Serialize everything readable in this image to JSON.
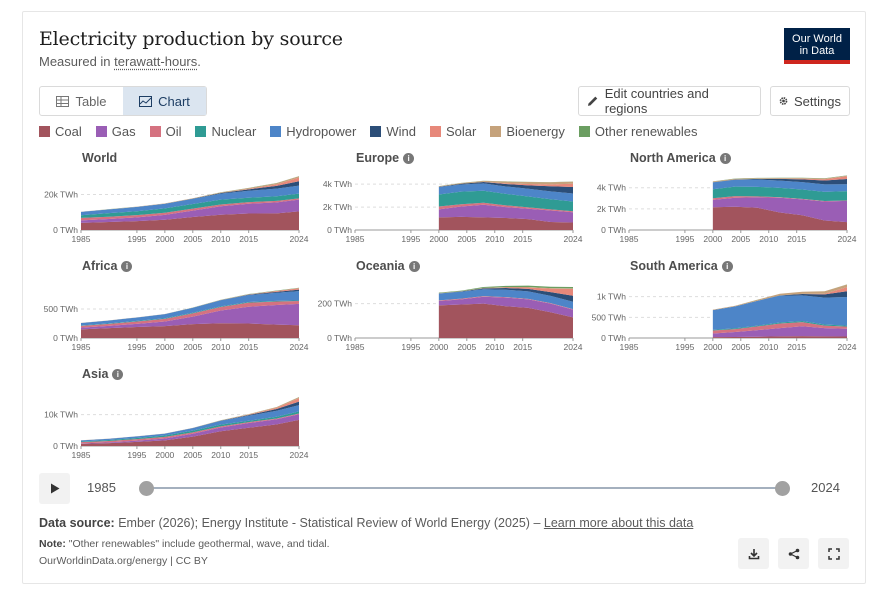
{
  "header": {
    "title": "Electricity production by source",
    "subtitle_prefix": "Measured in ",
    "subtitle_unit": "terawatt-hours",
    "subtitle_suffix": ".",
    "logo_line1": "Our World",
    "logo_line2": "in Data"
  },
  "tabs": [
    {
      "label": "Table",
      "active": false
    },
    {
      "label": "Chart",
      "active": true
    }
  ],
  "buttons": {
    "edit_label": "Edit countries and regions",
    "settings_label": "Settings"
  },
  "colors": {
    "Coal": "#a2545d",
    "Gas": "#9a5eb5",
    "Oil": "#d57280",
    "Nuclear": "#2f9b94",
    "Hydropower": "#4d85c8",
    "Wind": "#2c4e78",
    "Solar": "#e7887a",
    "Bioenergy": "#c5a27b",
    "Other renewables": "#6b9e61"
  },
  "legend": [
    "Coal",
    "Gas",
    "Oil",
    "Nuclear",
    "Hydropower",
    "Wind",
    "Solar",
    "Bioenergy",
    "Other renewables"
  ],
  "chart_data": [
    {
      "type": "area",
      "stacked": true,
      "title": "World",
      "info": false,
      "x": [
        1985,
        1990,
        1995,
        2000,
        2005,
        2010,
        2015,
        2020,
        2024
      ],
      "x_ticks": [
        "1985",
        "1995",
        "2000",
        "2005",
        "2010",
        "2015",
        "2024"
      ],
      "y_ticks": [
        {
          "v": 0,
          "l": "0 TWh"
        },
        {
          "v": 20000,
          "l": "20k TWh"
        }
      ],
      "ylim": [
        0,
        31000
      ],
      "x_range": [
        1985,
        2024
      ],
      "series": [
        {
          "name": "Coal",
          "values": [
            4000,
            4500,
            5000,
            5800,
            7300,
            8600,
            9300,
            9400,
            10500
          ]
        },
        {
          "name": "Gas",
          "values": [
            1400,
            1700,
            2100,
            2700,
            3600,
            4800,
            5500,
            6200,
            6600
          ]
        },
        {
          "name": "Oil",
          "values": [
            1400,
            1300,
            1300,
            1200,
            1150,
            1000,
            900,
            800,
            700
          ]
        },
        {
          "name": "Nuclear",
          "values": [
            1500,
            2000,
            2200,
            2500,
            2600,
            2700,
            2500,
            2600,
            2700
          ]
        },
        {
          "name": "Hydropower",
          "values": [
            1900,
            2100,
            2400,
            2600,
            2900,
            3400,
            3900,
            4300,
            4500
          ]
        },
        {
          "name": "Wind",
          "values": [
            0,
            0,
            10,
            30,
            100,
            340,
            830,
            1600,
            2500
          ]
        },
        {
          "name": "Solar",
          "values": [
            0,
            0,
            0,
            0,
            0,
            30,
            250,
            850,
            2100
          ]
        },
        {
          "name": "Bioenergy",
          "values": [
            80,
            110,
            130,
            150,
            220,
            370,
            500,
            650,
            700
          ]
        },
        {
          "name": "Other renewables",
          "values": [
            30,
            40,
            50,
            60,
            60,
            70,
            80,
            90,
            100
          ]
        }
      ]
    },
    {
      "type": "area",
      "stacked": true,
      "title": "Europe",
      "info": true,
      "x": [
        2000,
        2004,
        2008,
        2012,
        2016,
        2020,
        2024
      ],
      "x_ticks": [
        "1985",
        "1995",
        "2000",
        "2005",
        "2010",
        "2015",
        "2024"
      ],
      "y_ticks": [
        {
          "v": 0,
          "l": "0 TWh"
        },
        {
          "v": 2000,
          "l": "2k TWh"
        },
        {
          "v": 4000,
          "l": "4k TWh"
        }
      ],
      "ylim": [
        0,
        4800
      ],
      "x_range": [
        1985,
        2024
      ],
      "series": [
        {
          "name": "Coal",
          "values": [
            1100,
            1150,
            1100,
            1050,
            950,
            700,
            650
          ]
        },
        {
          "name": "Gas",
          "values": [
            700,
            900,
            1100,
            950,
            900,
            1000,
            900
          ]
        },
        {
          "name": "Oil",
          "values": [
            250,
            200,
            180,
            150,
            120,
            100,
            90
          ]
        },
        {
          "name": "Nuclear",
          "values": [
            1050,
            1100,
            1050,
            1000,
            950,
            880,
            850
          ]
        },
        {
          "name": "Hydropower",
          "values": [
            650,
            620,
            640,
            650,
            680,
            690,
            700
          ]
        },
        {
          "name": "Wind",
          "values": [
            30,
            70,
            120,
            210,
            300,
            450,
            560
          ]
        },
        {
          "name": "Solar",
          "values": [
            0,
            0,
            10,
            70,
            110,
            160,
            290
          ]
        },
        {
          "name": "Bioenergy",
          "values": [
            40,
            60,
            90,
            150,
            180,
            190,
            180
          ]
        },
        {
          "name": "Other renewables",
          "values": [
            10,
            10,
            12,
            12,
            13,
            13,
            13
          ]
        }
      ]
    },
    {
      "type": "area",
      "stacked": true,
      "title": "North America",
      "info": true,
      "x": [
        2000,
        2004,
        2008,
        2012,
        2016,
        2020,
        2024
      ],
      "x_ticks": [
        "1985",
        "1995",
        "2000",
        "2005",
        "2010",
        "2015",
        "2024"
      ],
      "y_ticks": [
        {
          "v": 0,
          "l": "0 TWh"
        },
        {
          "v": 2000,
          "l": "2k TWh"
        },
        {
          "v": 4000,
          "l": "4k TWh"
        }
      ],
      "ylim": [
        0,
        5200
      ],
      "x_range": [
        1985,
        2024
      ],
      "series": [
        {
          "name": "Coal",
          "values": [
            2150,
            2200,
            2100,
            1650,
            1400,
            900,
            750
          ]
        },
        {
          "name": "Gas",
          "values": [
            700,
            850,
            1000,
            1400,
            1500,
            1800,
            2000
          ]
        },
        {
          "name": "Oil",
          "values": [
            150,
            150,
            80,
            50,
            40,
            40,
            40
          ]
        },
        {
          "name": "Nuclear",
          "values": [
            850,
            900,
            900,
            880,
            890,
            870,
            880
          ]
        },
        {
          "name": "Hydropower",
          "values": [
            650,
            650,
            690,
            690,
            700,
            700,
            650
          ]
        },
        {
          "name": "Wind",
          "values": [
            10,
            20,
            60,
            160,
            260,
            370,
            500
          ]
        },
        {
          "name": "Solar",
          "values": [
            0,
            0,
            2,
            10,
            50,
            120,
            260
          ]
        },
        {
          "name": "Bioenergy",
          "values": [
            70,
            75,
            75,
            75,
            75,
            70,
            60
          ]
        },
        {
          "name": "Other renewables",
          "values": [
            20,
            20,
            20,
            20,
            20,
            20,
            20
          ]
        }
      ]
    },
    {
      "type": "area",
      "stacked": true,
      "title": "Africa",
      "info": true,
      "x": [
        1985,
        1990,
        1995,
        2000,
        2005,
        2010,
        2015,
        2020,
        2024
      ],
      "x_ticks": [
        "1985",
        "1995",
        "2000",
        "2005",
        "2010",
        "2015",
        "2024"
      ],
      "y_ticks": [
        {
          "v": 0,
          "l": "0 TWh"
        },
        {
          "v": 500,
          "l": "500 TWh"
        }
      ],
      "ylim": [
        0,
        950
      ],
      "x_range": [
        1985,
        2024
      ],
      "series": [
        {
          "name": "Coal",
          "values": [
            150,
            170,
            190,
            205,
            240,
            255,
            250,
            230,
            220
          ]
        },
        {
          "name": "Gas",
          "values": [
            30,
            40,
            55,
            80,
            130,
            220,
            290,
            340,
            370
          ]
        },
        {
          "name": "Oil",
          "values": [
            30,
            35,
            40,
            45,
            55,
            60,
            70,
            60,
            50
          ]
        },
        {
          "name": "Nuclear",
          "values": [
            5,
            8,
            10,
            12,
            12,
            12,
            12,
            12,
            10
          ]
        },
        {
          "name": "Hydropower",
          "values": [
            45,
            50,
            60,
            70,
            85,
            105,
            120,
            140,
            160
          ]
        },
        {
          "name": "Wind",
          "values": [
            0,
            0,
            0,
            0,
            1,
            3,
            8,
            15,
            25
          ]
        },
        {
          "name": "Solar",
          "values": [
            0,
            0,
            0,
            0,
            0,
            0,
            3,
            15,
            25
          ]
        },
        {
          "name": "Bioenergy",
          "values": [
            1,
            1,
            2,
            2,
            2,
            3,
            3,
            3,
            3
          ]
        },
        {
          "name": "Other renewables",
          "values": [
            0,
            0,
            0,
            0,
            1,
            2,
            3,
            5,
            6
          ]
        }
      ]
    },
    {
      "type": "area",
      "stacked": true,
      "title": "Oceania",
      "info": true,
      "x": [
        2000,
        2004,
        2008,
        2012,
        2016,
        2020,
        2024
      ],
      "x_ticks": [
        "1985",
        "1995",
        "2000",
        "2005",
        "2010",
        "2015",
        "2024"
      ],
      "y_ticks": [
        {
          "v": 0,
          "l": "0 TWh"
        },
        {
          "v": 200,
          "l": "200 TWh"
        }
      ],
      "ylim": [
        0,
        320
      ],
      "x_range": [
        1985,
        2024
      ],
      "series": [
        {
          "name": "Coal",
          "values": [
            190,
            195,
            200,
            185,
            175,
            150,
            120
          ]
        },
        {
          "name": "Gas",
          "values": [
            25,
            30,
            40,
            50,
            50,
            50,
            45
          ]
        },
        {
          "name": "Oil",
          "values": [
            4,
            4,
            4,
            3,
            3,
            3,
            3
          ]
        },
        {
          "name": "Nuclear",
          "values": [
            0,
            0,
            0,
            0,
            0,
            0,
            0
          ]
        },
        {
          "name": "Hydropower",
          "values": [
            40,
            40,
            40,
            43,
            43,
            42,
            43
          ]
        },
        {
          "name": "Wind",
          "values": [
            0,
            2,
            5,
            10,
            15,
            22,
            35
          ]
        },
        {
          "name": "Solar",
          "values": [
            0,
            0,
            0,
            3,
            8,
            20,
            40
          ]
        },
        {
          "name": "Bioenergy",
          "values": [
            2,
            2,
            3,
            3,
            3,
            3,
            3
          ]
        },
        {
          "name": "Other renewables",
          "values": [
            3,
            3,
            5,
            6,
            8,
            8,
            8
          ]
        }
      ]
    },
    {
      "type": "area",
      "stacked": true,
      "title": "South America",
      "info": true,
      "x": [
        2000,
        2004,
        2008,
        2012,
        2016,
        2020,
        2024
      ],
      "x_ticks": [
        "1985",
        "1995",
        "2000",
        "2005",
        "2010",
        "2015",
        "2024"
      ],
      "y_ticks": [
        {
          "v": 0,
          "l": "0 TWh"
        },
        {
          "v": 500,
          "l": "500 TWh"
        },
        {
          "v": 1000,
          "l": "1k TWh"
        }
      ],
      "ylim": [
        0,
        1330
      ],
      "x_range": [
        1985,
        2024
      ],
      "series": [
        {
          "name": "Coal",
          "values": [
            20,
            25,
            30,
            40,
            45,
            40,
            35
          ]
        },
        {
          "name": "Gas",
          "values": [
            90,
            120,
            160,
            200,
            240,
            200,
            190
          ]
        },
        {
          "name": "Oil",
          "values": [
            70,
            70,
            90,
            110,
            100,
            60,
            50
          ]
        },
        {
          "name": "Nuclear",
          "values": [
            15,
            20,
            20,
            25,
            25,
            25,
            25
          ]
        },
        {
          "name": "Hydropower",
          "values": [
            480,
            530,
            600,
            650,
            620,
            650,
            690
          ]
        },
        {
          "name": "Wind",
          "values": [
            0,
            0,
            1,
            5,
            35,
            80,
            140
          ]
        },
        {
          "name": "Solar",
          "values": [
            0,
            0,
            0,
            0,
            2,
            15,
            100
          ]
        },
        {
          "name": "Bioenergy",
          "values": [
            10,
            15,
            25,
            40,
            50,
            60,
            65
          ]
        },
        {
          "name": "Other renewables",
          "values": [
            0,
            0,
            1,
            1,
            2,
            2,
            3
          ]
        }
      ]
    },
    {
      "type": "area",
      "stacked": true,
      "title": "Asia",
      "info": true,
      "x": [
        1985,
        1990,
        1995,
        2000,
        2005,
        2010,
        2015,
        2020,
        2024
      ],
      "x_ticks": [
        "1985",
        "1995",
        "2000",
        "2005",
        "2010",
        "2015",
        "2024"
      ],
      "y_ticks": [
        {
          "v": 0,
          "l": "0 TWh"
        },
        {
          "v": 10000,
          "l": "10k TWh"
        }
      ],
      "ylim": [
        0,
        17500
      ],
      "x_range": [
        1985,
        2024
      ],
      "series": [
        {
          "name": "Coal",
          "values": [
            700,
            900,
            1300,
            1800,
            3000,
            4700,
            5800,
            6900,
            8300
          ]
        },
        {
          "name": "Gas",
          "values": [
            150,
            250,
            400,
            600,
            900,
            1200,
            1500,
            1600,
            1800
          ]
        },
        {
          "name": "Oil",
          "values": [
            400,
            450,
            500,
            500,
            450,
            350,
            300,
            250,
            250
          ]
        },
        {
          "name": "Nuclear",
          "values": [
            200,
            300,
            350,
            450,
            550,
            550,
            450,
            550,
            650
          ]
        },
        {
          "name": "Hydropower",
          "values": [
            350,
            420,
            520,
            600,
            800,
            1200,
            1600,
            1900,
            2000
          ]
        },
        {
          "name": "Wind",
          "values": [
            0,
            0,
            0,
            5,
            15,
            60,
            220,
            560,
            1100
          ]
        },
        {
          "name": "Solar",
          "values": [
            0,
            0,
            0,
            0,
            0,
            10,
            90,
            380,
            1150
          ]
        },
        {
          "name": "Bioenergy",
          "values": [
            10,
            15,
            20,
            25,
            50,
            100,
            170,
            250,
            320
          ]
        },
        {
          "name": "Other renewables",
          "values": [
            5,
            8,
            10,
            15,
            15,
            20,
            25,
            30,
            35
          ]
        }
      ]
    }
  ],
  "timeline": {
    "start_year": "1985",
    "end_year": "2024",
    "range_start": 1985,
    "range_end": 2024
  },
  "footer": {
    "source_label": "Data source:",
    "source_text": "Ember (2026); Energy Institute - Statistical Review of World Energy (2025) –",
    "learn_more": "Learn more about this data",
    "note_label": "Note:",
    "note_text": "\"Other renewables\" include geothermal, wave, and tidal.",
    "url": "OurWorldinData.org/energy | CC BY"
  }
}
